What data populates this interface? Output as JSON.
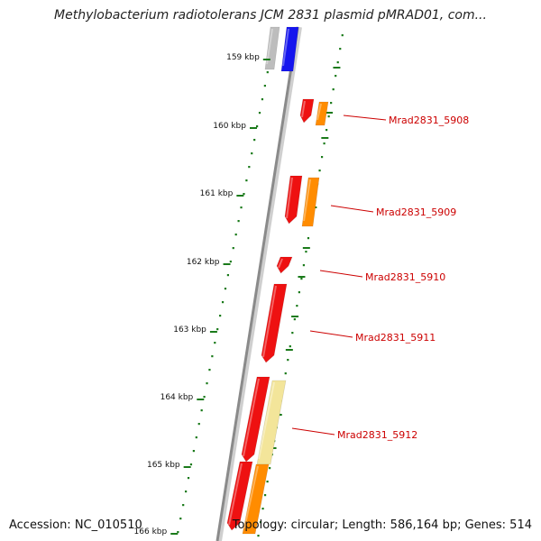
{
  "title": "Methylobacterium radiotolerans JCM 2831 plasmid pMRAD01, com...",
  "footer": {
    "accession": "Accession: NC_010510",
    "summary": "Topology: circular; Length: 586,164 bp; Genes: 514"
  },
  "colors": {
    "backbone": "#8a8a8a",
    "tick": "#1a7a1a",
    "gene_red": "#ee1111",
    "gene_orange": "#ff8c00",
    "gene_blue": "#1515ee",
    "gene_grey": "#bdbdbd",
    "gene_pale": "#f3e59a",
    "label": "#cc0000"
  },
  "map": {
    "kbp_labels": [
      "159 kbp",
      "160 kbp",
      "161 kbp",
      "162 kbp",
      "163 kbp",
      "164 kbp",
      "165 kbp",
      "166 kbp"
    ],
    "gene_labels": [
      "Mrad2831_5908",
      "Mrad2831_5909",
      "Mrad2831_5910",
      "Mrad2831_5911",
      "Mrad2831_5912"
    ]
  }
}
